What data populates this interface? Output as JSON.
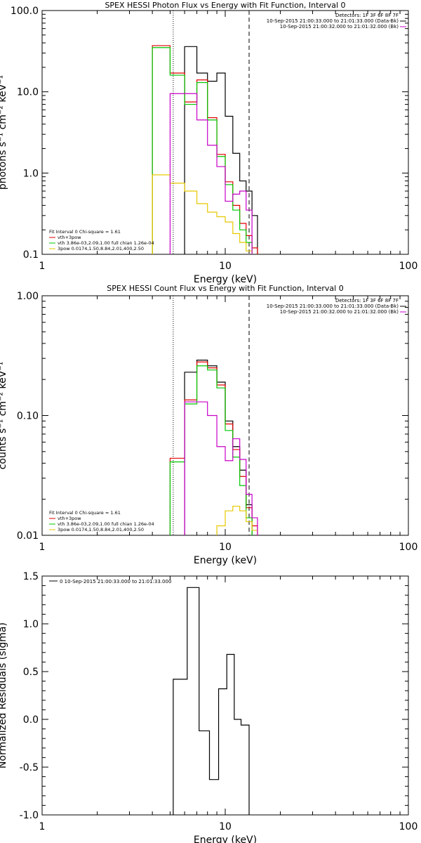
{
  "colors": {
    "data": "#000000",
    "vth_plus_3pow": "#e00000",
    "vth": "#00c800",
    "3pow": "#e6c800",
    "background": "#c800c8"
  },
  "chart_data": [
    {
      "type": "line",
      "step": true,
      "title": "SPEX HESSI Photon Flux vs Energy with Fit Function, Interval 0",
      "xlabel": "Energy (keV)",
      "ylabel": "photons s⁻¹ cm⁻² keV⁻¹",
      "xscale": "log",
      "yscale": "log",
      "xlim": [
        1,
        100
      ],
      "ylim": [
        0.1,
        100
      ],
      "xticks": [
        "1",
        "10",
        "100"
      ],
      "yticks": [
        "0.1",
        "1.0",
        "10.0",
        "100.0"
      ],
      "edges": [
        3,
        4,
        5,
        6,
        7,
        8,
        9,
        10,
        11,
        12,
        13,
        14,
        15
      ],
      "legend_top": [
        {
          "text": "Detectors: 1F 3F 6F 8F 7F"
        },
        {
          "text": "10-Sep-2015 21:00:33.000 to 21:01:33.000 (Data-Bk)",
          "color_key": "data"
        },
        {
          "text": "10-Sep-2015 21:00:32.000 to 21:01:32.000 (Bk)",
          "color_key": "background"
        }
      ],
      "legend_bottom": [
        {
          "text": "Fit Interval 0   Chi-square = 1.61"
        },
        {
          "text": "vth+3pow",
          "color_key": "vth_plus_3pow"
        },
        {
          "text": "vth 3.86e-03,2.09,1.00  full chian 1.26e-04",
          "color_key": "vth"
        },
        {
          "text": "3pow 0.0174,1.50,8.84,2.01,400,2.50",
          "color_key": "3pow"
        }
      ],
      "vlines": [
        {
          "x": 5.2,
          "style": "dotted"
        },
        {
          "x": 13.5,
          "style": "dashed"
        }
      ],
      "series": [
        {
          "color_key": "data",
          "from_edge": 3,
          "values": [
            36,
            17,
            13.5,
            17,
            5,
            1.75,
            0.8,
            0.6,
            0.3
          ]
        },
        {
          "color_key": "vth_plus_3pow",
          "from_edge": 1,
          "values": [
            37,
            17,
            7.5,
            14,
            4.8,
            1.7,
            0.78,
            0.4,
            0.24,
            0.17,
            0.12
          ]
        },
        {
          "color_key": "vth",
          "from_edge": 1,
          "values": [
            35,
            16,
            7.0,
            13,
            4.5,
            1.6,
            0.72,
            0.35,
            0.2,
            0.14
          ]
        },
        {
          "color_key": "3pow",
          "from_edge": 1,
          "values": [
            0.95,
            0.75,
            0.6,
            0.42,
            0.33,
            0.29,
            0.25,
            0.18,
            0.14,
            0.11
          ]
        },
        {
          "color_key": "background",
          "from_edge": 2,
          "values": [
            9.5,
            9.5,
            4.5,
            2.2,
            1.2,
            0.45,
            0.55,
            0.6,
            0.35
          ]
        }
      ]
    },
    {
      "type": "line",
      "step": true,
      "title": "SPEX HESSI Count Flux vs Energy with Fit Function, Interval 0",
      "xlabel": "Energy (keV)",
      "ylabel": "counts s⁻¹ cm⁻² keV⁻¹",
      "xscale": "log",
      "yscale": "log",
      "xlim": [
        1,
        100
      ],
      "ylim": [
        0.01,
        1
      ],
      "xticks": [
        "1",
        "10",
        "100"
      ],
      "yticks": [
        "0.01",
        "0.10",
        "1.00"
      ],
      "edges": [
        3,
        4,
        5,
        6,
        7,
        8,
        9,
        10,
        11,
        12,
        13,
        14,
        15
      ],
      "legend_top": [
        {
          "text": "Detectors: 1F 3F 6F 8F 7F"
        },
        {
          "text": "10-Sep-2015 21:00:33.000 to 21:01:33.000 (Data-Bk)",
          "color_key": "data"
        },
        {
          "text": "10-Sep-2015 21:00:32.000 to 21:01:32.000 (Bk)",
          "color_key": "background"
        }
      ],
      "legend_bottom": [
        {
          "text": "Fit Interval 0   Chi-square = 1.61"
        },
        {
          "text": "vth+3pow",
          "color_key": "vth_plus_3pow"
        },
        {
          "text": "vth 3.86e-03,2.09,1.00  full chian 1.26e-04",
          "color_key": "vth"
        },
        {
          "text": "3pow 0.0174,1.50,8.84,2.01,400,2.50",
          "color_key": "3pow"
        }
      ],
      "vlines": [
        {
          "x": 5.2,
          "style": "dotted"
        },
        {
          "x": 13.5,
          "style": "dashed"
        }
      ],
      "series": [
        {
          "color_key": "data",
          "from_edge": 3,
          "values": [
            0.23,
            0.29,
            0.26,
            0.19,
            0.09,
            0.055,
            0.035,
            0.018
          ]
        },
        {
          "color_key": "vth_plus_3pow",
          "from_edge": 2,
          "values": [
            0.044,
            0.135,
            0.28,
            0.25,
            0.18,
            0.085,
            0.052,
            0.031,
            0.017,
            0.012
          ]
        },
        {
          "color_key": "vth",
          "from_edge": 2,
          "values": [
            0.041,
            0.125,
            0.26,
            0.24,
            0.17,
            0.075,
            0.045,
            0.026,
            0.014
          ]
        },
        {
          "color_key": "3pow",
          "from_edge": 6,
          "values": [
            0.012,
            0.016,
            0.0175,
            0.016,
            0.013,
            0.011,
            0.01
          ]
        },
        {
          "color_key": "background",
          "from_edge": 3,
          "values": [
            0.13,
            0.13,
            0.1,
            0.055,
            0.042,
            0.064,
            0.043,
            0.022,
            0.014
          ]
        }
      ]
    },
    {
      "type": "line",
      "step": true,
      "xlabel": "Energy (keV)",
      "ylabel": "Normalized Residuals (sigma)",
      "xscale": "log",
      "yscale": "linear",
      "xlim": [
        1,
        100
      ],
      "ylim": [
        -1,
        1.5
      ],
      "xticks": [
        "1",
        "10",
        "100"
      ],
      "yticks": [
        "-1.0",
        "-0.5",
        "0.0",
        "0.5",
        "1.0",
        "1.5"
      ],
      "edges": [
        5.2,
        6.2,
        7.2,
        8.2,
        9.2,
        10.2,
        11.2,
        12.2,
        13.5
      ],
      "legend_top": [
        {
          "text": "0  10-Sep-2015 21:00:33.000 to 21:01:33.000",
          "color_key": "data"
        }
      ],
      "series": [
        {
          "color_key": "data",
          "from_edge": 0,
          "values": [
            0.42,
            1.38,
            -0.12,
            -0.63,
            0.32,
            0.68,
            0.0,
            -0.06
          ],
          "drop_to_bottom": true
        }
      ]
    }
  ]
}
